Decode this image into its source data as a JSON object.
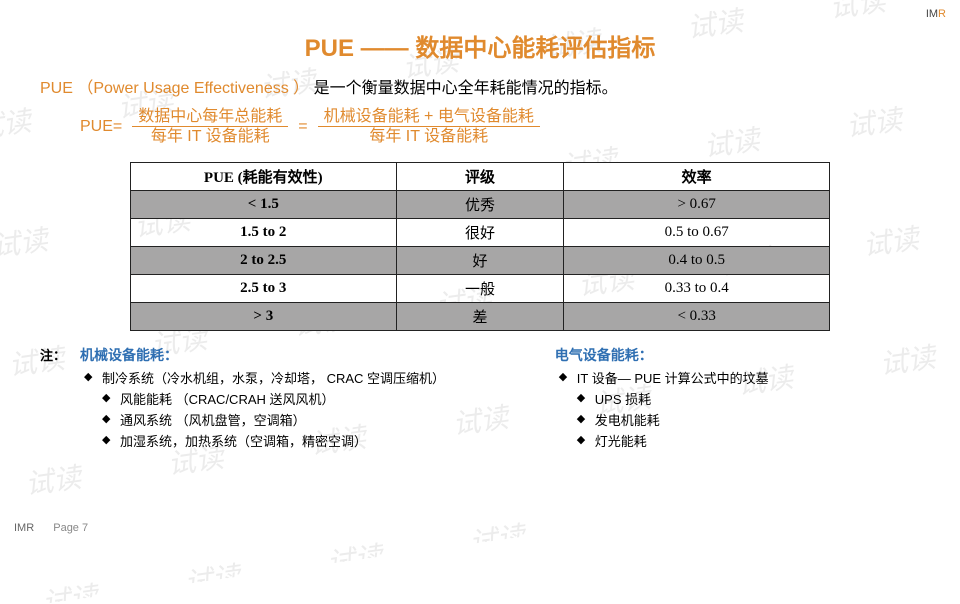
{
  "logo": "IMR",
  "title": "PUE —— 数据中心能耗评估指标",
  "intro": {
    "pue": "PUE",
    "paren": "（Power  Usage Effectiveness ）",
    "rest": "是一个衡量数据中心全年耗能情况的指标。"
  },
  "formula": {
    "label": "PUE=",
    "frac1_top": "数据中心每年总能耗",
    "frac1_bot": "每年 IT 设备能耗",
    "eq": "=",
    "frac2_top": "机械设备能耗 + 电气设备能耗",
    "frac2_bot": "每年 IT 设备能耗"
  },
  "table": {
    "headers": [
      "PUE (耗能有效性)",
      "评级",
      "效率"
    ],
    "rows": [
      {
        "cells": [
          "< 1.5",
          "优秀",
          "> 0.67"
        ],
        "shade": true
      },
      {
        "cells": [
          "1.5 to 2",
          "很好",
          "0.5 to 0.67"
        ],
        "shade": false
      },
      {
        "cells": [
          "2 to 2.5",
          "好",
          "0.4 to 0.5"
        ],
        "shade": true
      },
      {
        "cells": [
          "2.5 to 3",
          "一般",
          "0.33 to 0.4"
        ],
        "shade": false
      },
      {
        "cells": [
          "> 3",
          "差",
          "< 0.33"
        ],
        "shade": true
      }
    ],
    "col_widths": [
      "38%",
      "24%",
      "38%"
    ]
  },
  "notes_label": "注：",
  "mech": {
    "heading": "机械设备能耗：",
    "items": [
      "制冷系统（冷水机组，水泵，冷却塔， CRAC 空调压缩机）",
      "风能能耗 （CRAC/CRAH 送风风机）",
      "通风系统 （风机盘管，空调箱）",
      "加湿系统，加热系统（空调箱，精密空调）"
    ],
    "indent": [
      false,
      true,
      true,
      true
    ]
  },
  "elec": {
    "heading": "电气设备能耗：",
    "items": [
      "IT 设备— PUE 计算公式中的坟墓",
      "UPS 损耗",
      "发电机能耗",
      "灯光能耗"
    ],
    "indent": [
      false,
      true,
      true,
      true
    ]
  },
  "footer": {
    "imr": "IMR",
    "page": "Page 7"
  },
  "colors": {
    "accent": "#e08a2e",
    "link": "#2f6fb2",
    "shade": "#a7a6a6"
  }
}
